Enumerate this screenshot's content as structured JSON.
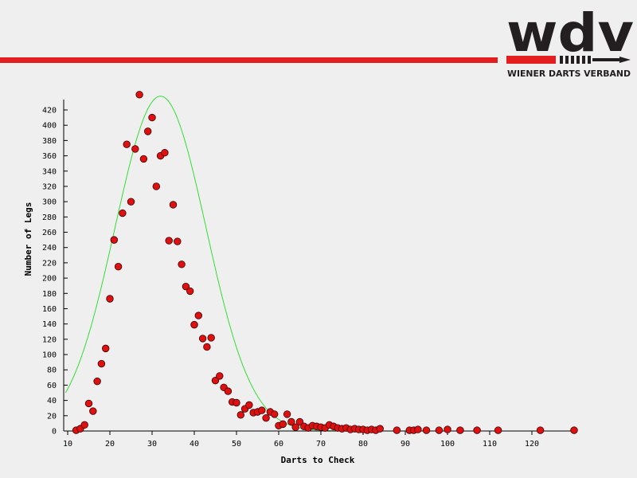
{
  "branding": {
    "logo_text": "wdv",
    "subtitle": "WIENER DARTS VERBAND",
    "accent_color": "#e41e1e",
    "dark_color": "#231f20"
  },
  "chart_data": {
    "type": "scatter",
    "title": "",
    "xlabel": "Darts to Check",
    "ylabel": "Number of Legs",
    "xlim": [
      10,
      130
    ],
    "ylim": [
      0,
      420
    ],
    "xticks": [
      10,
      20,
      30,
      40,
      50,
      60,
      70,
      80,
      90,
      100,
      110,
      120
    ],
    "yticks": [
      0,
      20,
      40,
      60,
      80,
      100,
      120,
      140,
      160,
      180,
      200,
      220,
      240,
      260,
      280,
      300,
      320,
      340,
      360,
      380,
      400,
      420
    ],
    "marker_color": "#e01010",
    "fit_color": "#33dd33",
    "points": [
      [
        12,
        1
      ],
      [
        13,
        3
      ],
      [
        14,
        8
      ],
      [
        15,
        36
      ],
      [
        16,
        26
      ],
      [
        17,
        65
      ],
      [
        18,
        88
      ],
      [
        19,
        108
      ],
      [
        20,
        173
      ],
      [
        21,
        250
      ],
      [
        22,
        215
      ],
      [
        23,
        285
      ],
      [
        24,
        375
      ],
      [
        25,
        300
      ],
      [
        26,
        369
      ],
      [
        27,
        440
      ],
      [
        28,
        356
      ],
      [
        29,
        392
      ],
      [
        30,
        410
      ],
      [
        31,
        320
      ],
      [
        32,
        360
      ],
      [
        33,
        364
      ],
      [
        34,
        249
      ],
      [
        35,
        296
      ],
      [
        36,
        248
      ],
      [
        37,
        218
      ],
      [
        38,
        189
      ],
      [
        39,
        183
      ],
      [
        40,
        139
      ],
      [
        41,
        151
      ],
      [
        42,
        121
      ],
      [
        43,
        110
      ],
      [
        44,
        122
      ],
      [
        45,
        66
      ],
      [
        46,
        72
      ],
      [
        47,
        57
      ],
      [
        48,
        52
      ],
      [
        49,
        38
      ],
      [
        50,
        37
      ],
      [
        51,
        21
      ],
      [
        52,
        29
      ],
      [
        53,
        34
      ],
      [
        54,
        24
      ],
      [
        55,
        25
      ],
      [
        56,
        27
      ],
      [
        57,
        17
      ],
      [
        58,
        25
      ],
      [
        59,
        22
      ],
      [
        60,
        7
      ],
      [
        61,
        9
      ],
      [
        62,
        22
      ],
      [
        63,
        12
      ],
      [
        64,
        5
      ],
      [
        65,
        12
      ],
      [
        66,
        6
      ],
      [
        67,
        4
      ],
      [
        68,
        7
      ],
      [
        69,
        6
      ],
      [
        70,
        5
      ],
      [
        71,
        4
      ],
      [
        72,
        8
      ],
      [
        73,
        6
      ],
      [
        74,
        4
      ],
      [
        75,
        3
      ],
      [
        76,
        4
      ],
      [
        77,
        2
      ],
      [
        78,
        3
      ],
      [
        79,
        2
      ],
      [
        80,
        2
      ],
      [
        81,
        1
      ],
      [
        82,
        2
      ],
      [
        83,
        1
      ],
      [
        84,
        3
      ],
      [
        88,
        1
      ],
      [
        91,
        1
      ],
      [
        92,
        1
      ],
      [
        93,
        2
      ],
      [
        95,
        1
      ],
      [
        98,
        1
      ],
      [
        100,
        2
      ],
      [
        103,
        1
      ],
      [
        107,
        1
      ],
      [
        112,
        1
      ],
      [
        122,
        1
      ],
      [
        130,
        1
      ]
    ],
    "fit": {
      "type": "gaussian",
      "peak": 438,
      "mean": 32,
      "sd": 10.8
    }
  }
}
